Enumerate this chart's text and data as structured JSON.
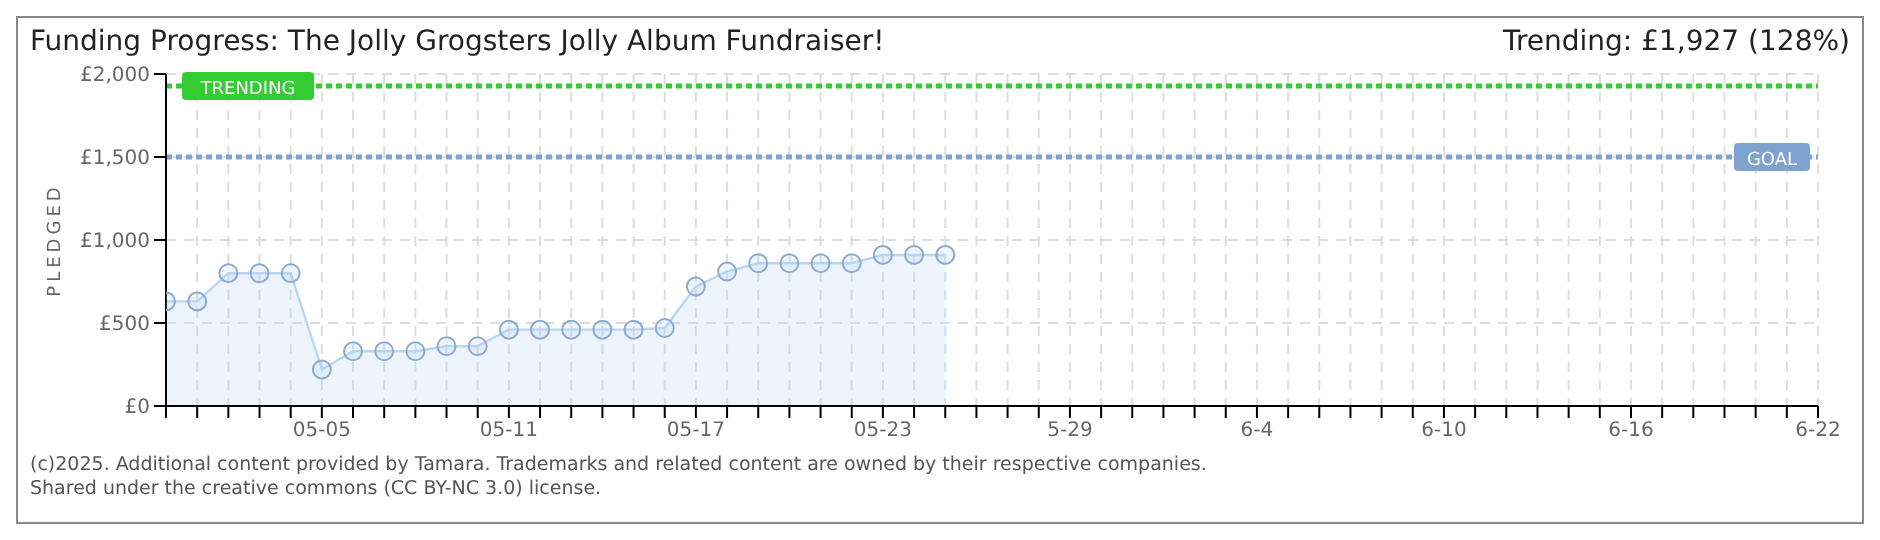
{
  "chart_data": {
    "type": "area",
    "title": "Funding Progress: The Jolly Grogsters Jolly Album Fundraiser!",
    "subtitle": "Trending:  £1,927 (128%)",
    "ylabel": "PLEDGED",
    "x": [
      "--04-30",
      "--05-01",
      "--05-02",
      "--05-03",
      "--05-04",
      "--05-05",
      "--05-06",
      "--05-07",
      "--05-08",
      "--05-09",
      "--05-10",
      "--05-11",
      "--05-12",
      "--05-13",
      "--05-14",
      "--05-15",
      "--05-16",
      "--05-17",
      "--05-18",
      "--05-19",
      "--05-20",
      "--05-21",
      "--05-22",
      "--05-23",
      "--05-24",
      "--05-25"
    ],
    "series": [
      {
        "color": "#b9d5f3",
        "values": [
          630,
          630,
          800,
          800,
          800,
          220,
          330,
          330,
          330,
          360,
          360,
          460,
          460,
          460,
          460,
          460,
          470,
          720,
          810,
          860,
          860,
          860,
          860,
          910,
          910,
          910
        ]
      }
    ],
    "xlim": [
      "--04-30",
      "--06-22"
    ],
    "xticks": [
      {
        "value": "--05-05",
        "label": "05-05"
      },
      {
        "value": "--05-11",
        "label": "05-11"
      },
      {
        "value": "--05-17",
        "label": "05-17"
      },
      {
        "value": "--05-23",
        "label": "05-23"
      },
      {
        "value": "--05-29",
        "label": "5-29"
      },
      {
        "value": "--06-04",
        "label": "6-4"
      },
      {
        "value": "--06-10",
        "label": "6-10"
      },
      {
        "value": "--06-16",
        "label": "6-16"
      },
      {
        "value": "--06-22",
        "label": "6-22"
      }
    ],
    "ylim": [
      0,
      2000
    ],
    "yticks": [
      {
        "value": 0,
        "label": "£0"
      },
      {
        "value": 500,
        "label": "£500"
      },
      {
        "value": 1000,
        "label": "£1,000"
      },
      {
        "value": 1500,
        "label": "£1,500"
      },
      {
        "value": 2000,
        "label": "£2,000"
      }
    ],
    "ref_lines": [
      {
        "axis": "y",
        "value": 1927,
        "label": "TRENDING",
        "color": "#33cc33",
        "line_style": "dotted"
      },
      {
        "axis": "y",
        "value": 1500,
        "label": "GOAL",
        "color": "#7fa3d0",
        "line_style": "dotted"
      }
    ],
    "grid": true,
    "marker": "circle",
    "line_style": "solid",
    "annotations": [
      "(c)2025. Additional content provided by Tamara. Trademarks and related content are owned by their respective companies.",
      "Shared under the creative commons (CC BY-NC 3.0) license."
    ]
  }
}
